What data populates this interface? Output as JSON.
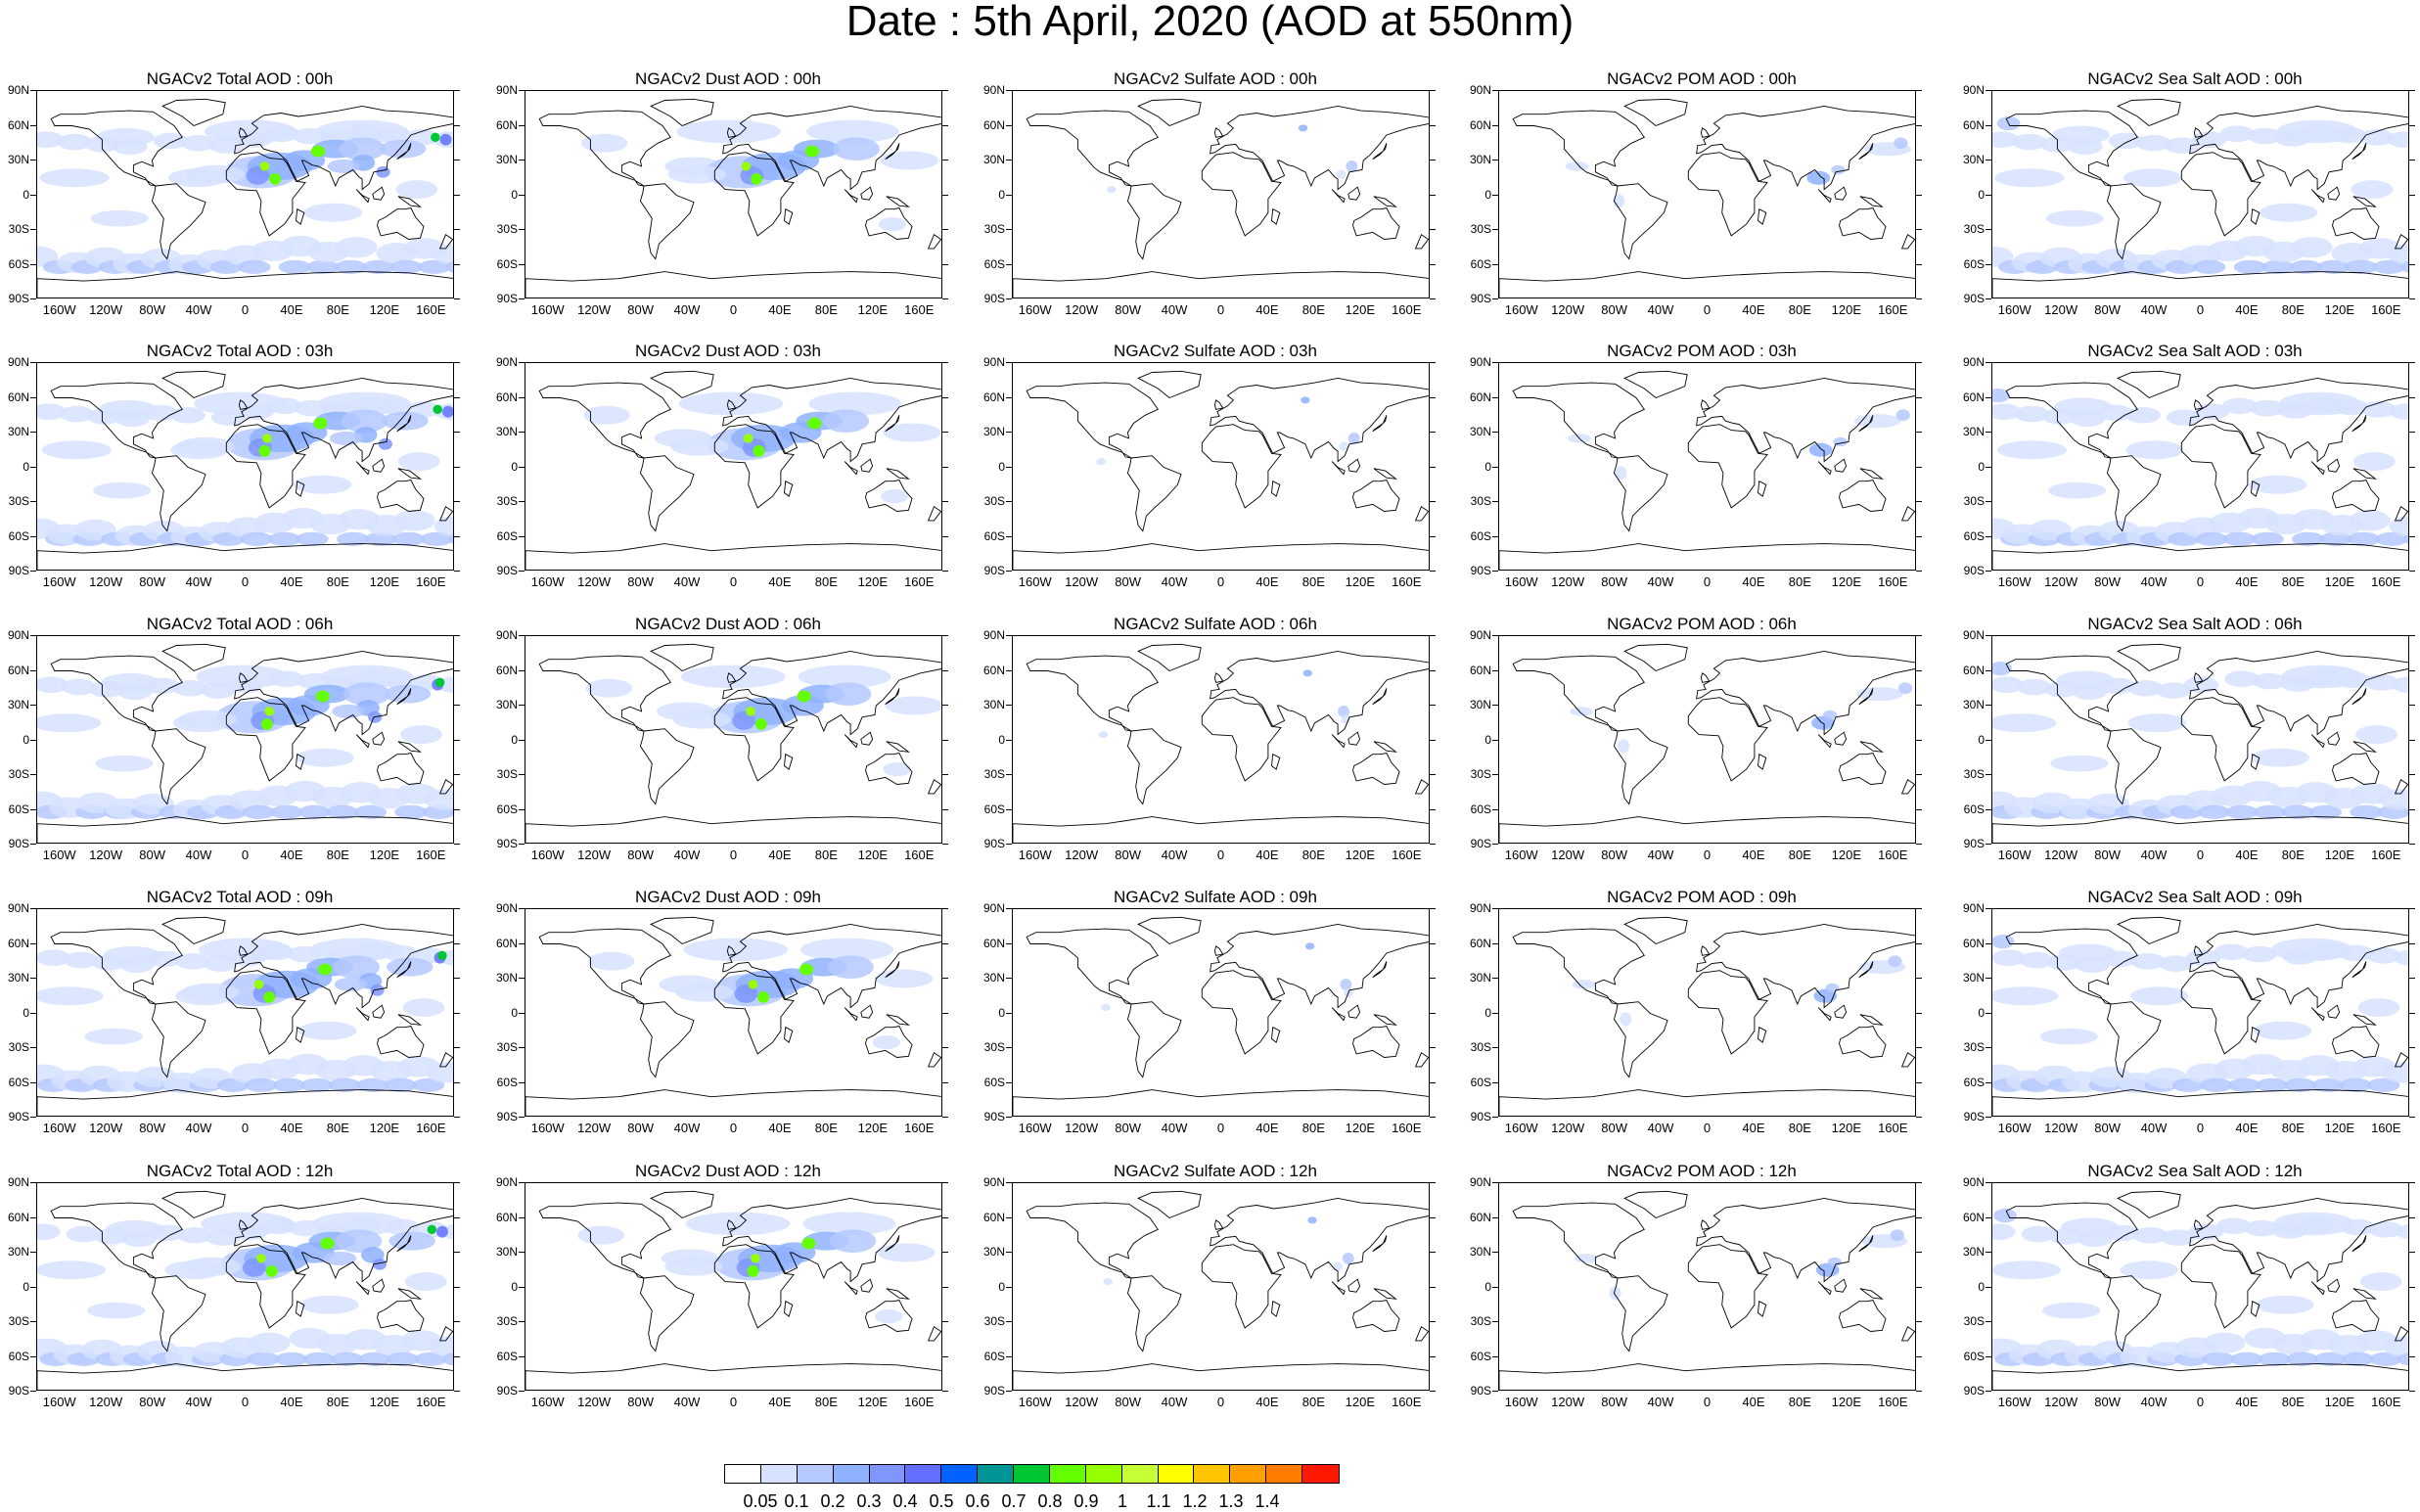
{
  "figure_title": "Date : 5th April, 2020 (AOD at 550nm)",
  "lat_labels": [
    "90N",
    "60N",
    "30N",
    "0",
    "30S",
    "60S",
    "90S"
  ],
  "lon_labels": [
    "160W",
    "120W",
    "80W",
    "40W",
    "0",
    "40E",
    "80E",
    "120E",
    "160E"
  ],
  "panel_titles": [
    [
      "NGACv2 Total AOD : 00h",
      "NGACv2 Dust AOD : 00h",
      "NGACv2 Sulfate AOD : 00h",
      "NGACv2 POM AOD : 00h",
      "NGACv2 Sea Salt AOD : 00h"
    ],
    [
      "NGACv2 Total AOD : 03h",
      "NGACv2 Dust AOD : 03h",
      "NGACv2 Sulfate AOD : 03h",
      "NGACv2 POM AOD : 03h",
      "NGACv2 Sea Salt AOD : 03h"
    ],
    [
      "NGACv2 Total AOD : 06h",
      "NGACv2 Dust AOD : 06h",
      "NGACv2 Sulfate AOD : 06h",
      "NGACv2 POM AOD : 06h",
      "NGACv2 Sea Salt AOD : 06h"
    ],
    [
      "NGACv2 Total AOD : 09h",
      "NGACv2 Dust AOD : 09h",
      "NGACv2 Sulfate AOD : 09h",
      "NGACv2 POM AOD : 09h",
      "NGACv2 Sea Salt  AOD : 09h"
    ],
    [
      "NGACv2 Total AOD : 12h",
      "NGACv2 Dust AOD : 12h",
      "NGACv2 Sulfate AOD : 12h",
      "NGACv2 POM  AOD : 12h",
      "NGACv2 Sea Salt AOD : 12h"
    ]
  ],
  "colorbar": {
    "labels": [
      "0.05",
      "0.1",
      "0.2",
      "0.3",
      "0.4",
      "0.5",
      "0.6",
      "0.7",
      "0.8",
      "0.9",
      "1",
      "1.1",
      "1.2",
      "1.3",
      "1.4"
    ],
    "colors": [
      "#ffffff",
      "#d6e2ff",
      "#b5c9ff",
      "#8eb2ff",
      "#7f96ff",
      "#6370ff",
      "#0063ff",
      "#009696",
      "#00c633",
      "#63ff00",
      "#96ff00",
      "#c6ff33",
      "#ffff00",
      "#ffc600",
      "#ffa000",
      "#ff7c00",
      "#ff1900"
    ]
  }
}
